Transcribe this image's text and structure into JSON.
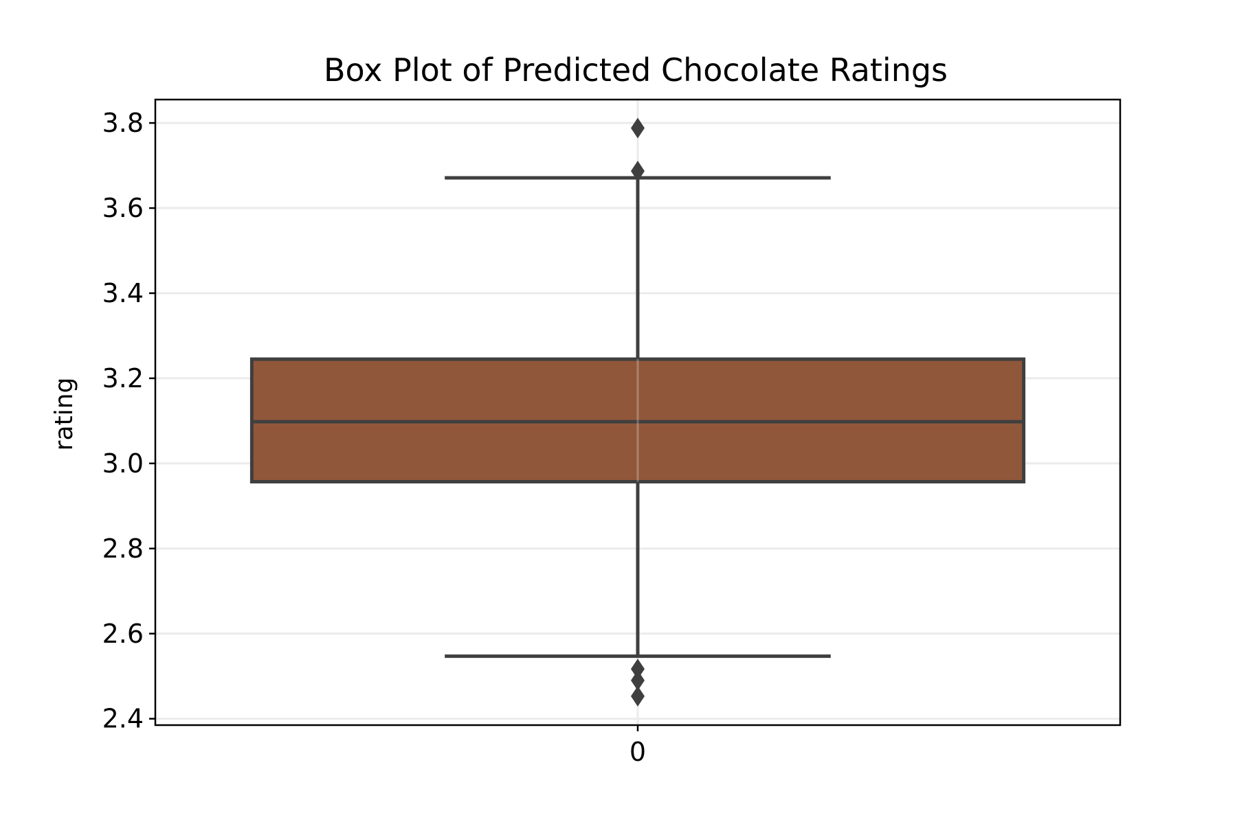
{
  "chart_data": {
    "type": "box",
    "title": "Box Plot of Predicted Chocolate Ratings",
    "xlabel": "",
    "ylabel": "rating",
    "categories": [
      "0"
    ],
    "y_ticks": [
      2.4,
      2.6,
      2.8,
      3.0,
      3.2,
      3.4,
      3.6,
      3.8
    ],
    "ylim": [
      2.385,
      3.855
    ],
    "grid": true,
    "box_color": "#91573B",
    "line_color": "#3f3f3f",
    "boxes": [
      {
        "category": "0",
        "whisker_low": 2.547,
        "q1": 2.957,
        "median": 3.098,
        "q3": 3.245,
        "whisker_high": 3.671,
        "outliers": [
          3.788,
          3.687,
          2.517,
          2.49,
          2.453
        ]
      }
    ]
  }
}
